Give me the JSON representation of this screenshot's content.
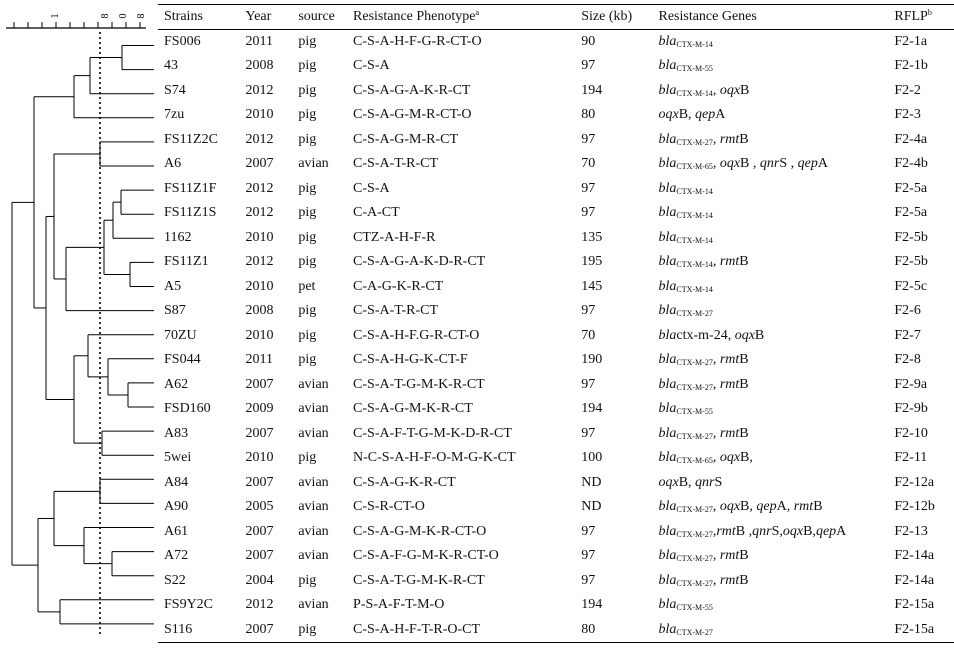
{
  "headers": {
    "strain": "Strains",
    "year": "Year",
    "source": "source",
    "phenotype": "Resistance Phenotype",
    "phenotype_sup": "a",
    "size": "Size (kb)",
    "genes": "Resistance Genes",
    "rflp": "RFLP",
    "rflp_sup": "b"
  },
  "scale": {
    "ticks": [
      "1",
      "8",
      "0",
      "8"
    ]
  },
  "rows": [
    {
      "strain": "FS006",
      "year": "2011",
      "source": "pig",
      "phenotype": "C-S-A-H-F-G-R-CT-O",
      "size": "90",
      "genes": [
        {
          "t": "bla",
          "i": true
        },
        {
          "t": "CTX-M-14",
          "s": true
        }
      ],
      "rflp": "F2-1a"
    },
    {
      "strain": "43",
      "year": "2008",
      "source": "pig",
      "phenotype": "C-S-A",
      "size": "97",
      "genes": [
        {
          "t": "bla",
          "i": true
        },
        {
          "t": "CTX-M-55",
          "s": true
        }
      ],
      "rflp": "F2-1b"
    },
    {
      "strain": "S74",
      "year": "2012",
      "source": "pig",
      "phenotype": "C-S-A-G-A-K-R-CT",
      "size": "194",
      "genes": [
        {
          "t": "bla",
          "i": true
        },
        {
          "t": "CTX-M-14",
          "s": true
        },
        {
          "t": ", "
        },
        {
          "t": "oqx",
          "i": true
        },
        {
          "t": "B"
        }
      ],
      "rflp": "F2-2"
    },
    {
      "strain": "7zu",
      "year": "2010",
      "source": "pig",
      "phenotype": "C-S-A-G-M-R-CT-O",
      "size": "80",
      "genes": [
        {
          "t": "oqx",
          "i": true
        },
        {
          "t": "B, "
        },
        {
          "t": "qep",
          "i": true
        },
        {
          "t": "A"
        }
      ],
      "rflp": "F2-3"
    },
    {
      "strain": "FS11Z2C",
      "year": "2012",
      "source": "pig",
      "phenotype": "C-S-A-G-M-R-CT",
      "size": "97",
      "genes": [
        {
          "t": "bla",
          "i": true
        },
        {
          "t": "CTX-M-27",
          "s": true
        },
        {
          "t": ", "
        },
        {
          "t": "rmt",
          "i": true
        },
        {
          "t": "B"
        }
      ],
      "rflp": "F2-4a"
    },
    {
      "strain": "A6",
      "year": "2007",
      "source": "avian",
      "phenotype": "C-S-A-T-R-CT",
      "size": "70",
      "genes": [
        {
          "t": "bla",
          "i": true
        },
        {
          "t": "CTX-M-65",
          "s": true
        },
        {
          "t": ", "
        },
        {
          "t": "oqx",
          "i": true
        },
        {
          "t": "B , "
        },
        {
          "t": "qnr",
          "i": true
        },
        {
          "t": "S , "
        },
        {
          "t": "qep",
          "i": true
        },
        {
          "t": "A"
        }
      ],
      "rflp": "F2-4b"
    },
    {
      "strain": "FS11Z1F",
      "year": "2012",
      "source": "pig",
      "phenotype": "C-S-A",
      "size": "97",
      "genes": [
        {
          "t": "bla",
          "i": true
        },
        {
          "t": "CTX-M-14",
          "s": true
        }
      ],
      "rflp": "F2-5a"
    },
    {
      "strain": "FS11Z1S",
      "year": "2012",
      "source": "pig",
      "phenotype": "C-A-CT",
      "size": "97",
      "genes": [
        {
          "t": "bla",
          "i": true
        },
        {
          "t": "CTX-M-14",
          "s": true
        }
      ],
      "rflp": "F2-5a"
    },
    {
      "strain": "1162",
      "year": "2010",
      "source": "pig",
      "phenotype": "CTZ-A-H-F-R",
      "size": "135",
      "genes": [
        {
          "t": "bla",
          "i": true
        },
        {
          "t": "CTX-M-14",
          "s": true
        }
      ],
      "rflp": "F2-5b"
    },
    {
      "strain": "FS11Z1",
      "year": "2012",
      "source": "pig",
      "phenotype": "C-S-A-G-A-K-D-R-CT",
      "size": "195",
      "genes": [
        {
          "t": "bla",
          "i": true
        },
        {
          "t": "CTX-M-14",
          "s": true
        },
        {
          "t": ", "
        },
        {
          "t": "rmt",
          "i": true
        },
        {
          "t": "B"
        }
      ],
      "rflp": "F2-5b"
    },
    {
      "strain": "A5",
      "year": "2010",
      "source": "pet",
      "phenotype": "C-A-G-K-R-CT",
      "size": "145",
      "genes": [
        {
          "t": "bla",
          "i": true
        },
        {
          "t": "CTX-M-14",
          "s": true
        }
      ],
      "rflp": "F2-5c"
    },
    {
      "strain": "S87",
      "year": "2008",
      "source": "pig",
      "phenotype": "C-S-A-T-R-CT",
      "size": "97",
      "genes": [
        {
          "t": "bla",
          "i": true
        },
        {
          "t": "CTX-M-27",
          "s": true
        }
      ],
      "rflp": "F2-6"
    },
    {
      "strain": "70ZU",
      "year": "2010",
      "source": "pig",
      "phenotype": "C-S-A-H-F.G-R-CT-O",
      "size": "70",
      "genes": [
        {
          "t": "bla",
          "i": true
        },
        {
          "t": "ctx-m-24, "
        },
        {
          "t": "oqx",
          "i": true
        },
        {
          "t": "B"
        }
      ],
      "rflp": "F2-7"
    },
    {
      "strain": "FS044",
      "year": "2011",
      "source": "pig",
      "phenotype": "C-S-A-H-G-K-CT-F",
      "size": "190",
      "genes": [
        {
          "t": "bla",
          "i": true
        },
        {
          "t": "CTX-M-27",
          "s": true
        },
        {
          "t": ", "
        },
        {
          "t": "rmt",
          "i": true
        },
        {
          "t": "B"
        }
      ],
      "rflp": "F2-8"
    },
    {
      "strain": "A62",
      "year": "2007",
      "source": "avian",
      "phenotype": "C-S-A-T-G-M-K-R-CT",
      "size": "97",
      "genes": [
        {
          "t": "bla",
          "i": true
        },
        {
          "t": "CTX-M-27",
          "s": true
        },
        {
          "t": ", "
        },
        {
          "t": "rmt",
          "i": true
        },
        {
          "t": "B"
        }
      ],
      "rflp": "F2-9a"
    },
    {
      "strain": "FSD160",
      "year": "2009",
      "source": "avian",
      "phenotype": "C-S-A-G-M-K-R-CT",
      "size": "194",
      "genes": [
        {
          "t": "bla",
          "i": true
        },
        {
          "t": "CTX-M-55",
          "s": true
        }
      ],
      "rflp": "F2-9b"
    },
    {
      "strain": "A83",
      "year": "2007",
      "source": "avian",
      "phenotype": "C-S-A-F-T-G-M-K-D-R-CT",
      "size": "97",
      "genes": [
        {
          "t": "bla",
          "i": true
        },
        {
          "t": "CTX-M-27",
          "s": true
        },
        {
          "t": ", "
        },
        {
          "t": "rmt",
          "i": true
        },
        {
          "t": "B"
        }
      ],
      "rflp": "F2-10"
    },
    {
      "strain": "5wei",
      "year": "2010",
      "source": "pig",
      "phenotype": "N-C-S-A-H-F-O-M-G-K-CT",
      "size": "100",
      "genes": [
        {
          "t": "bla",
          "i": true
        },
        {
          "t": "CTX-M-65",
          "s": true
        },
        {
          "t": ", "
        },
        {
          "t": "oqx",
          "i": true
        },
        {
          "t": "B,"
        }
      ],
      "rflp": "F2-11"
    },
    {
      "strain": "A84",
      "year": "2007",
      "source": "avian",
      "phenotype": "C-S-A-G-K-R-CT",
      "size": "ND",
      "genes": [
        {
          "t": "oqx",
          "i": true
        },
        {
          "t": "B, "
        },
        {
          "t": "qnr",
          "i": true
        },
        {
          "t": "S"
        }
      ],
      "rflp": "F2-12a"
    },
    {
      "strain": "A90",
      "year": "2005",
      "source": "avian",
      "phenotype": "C-S-R-CT-O",
      "size": "ND",
      "genes": [
        {
          "t": "bla",
          "i": true
        },
        {
          "t": "CTX-M-27",
          "s": true
        },
        {
          "t": ", "
        },
        {
          "t": "oqx",
          "i": true
        },
        {
          "t": "B, "
        },
        {
          "t": "qep",
          "i": true
        },
        {
          "t": "A, "
        },
        {
          "t": "rmt",
          "i": true
        },
        {
          "t": "B"
        }
      ],
      "rflp": "F2-12b"
    },
    {
      "strain": "A61",
      "year": "2007",
      "source": "avian",
      "phenotype": "C-S-A-G-M-K-R-CT-O",
      "size": "97",
      "genes": [
        {
          "t": "bla",
          "i": true
        },
        {
          "t": "CTX-M-27",
          "s": true
        },
        {
          "t": ","
        },
        {
          "t": "rmt",
          "i": true
        },
        {
          "t": "B ,"
        },
        {
          "t": "qnr",
          "i": true
        },
        {
          "t": "S,"
        },
        {
          "t": "oqx",
          "i": true
        },
        {
          "t": "B,"
        },
        {
          "t": "qep",
          "i": true
        },
        {
          "t": "A"
        }
      ],
      "rflp": "F2-13"
    },
    {
      "strain": "A72",
      "year": "2007",
      "source": "avian",
      "phenotype": "C-S-A-F-G-M-K-R-CT-O",
      "size": "97",
      "genes": [
        {
          "t": "bla",
          "i": true
        },
        {
          "t": "CTX-M-27",
          "s": true
        },
        {
          "t": ", "
        },
        {
          "t": "rmt",
          "i": true
        },
        {
          "t": "B"
        }
      ],
      "rflp": "F2-14a"
    },
    {
      "strain": "S22",
      "year": "2004",
      "source": "pig",
      "phenotype": "C-S-A-T-G-M-K-R-CT",
      "size": "97",
      "genes": [
        {
          "t": "bla",
          "i": true
        },
        {
          "t": "CTX-M-27",
          "s": true
        },
        {
          "t": ", "
        },
        {
          "t": "rmt",
          "i": true
        },
        {
          "t": "B"
        }
      ],
      "rflp": "F2-14a"
    },
    {
      "strain": "FS9Y2C",
      "year": "2012",
      "source": "avian",
      "phenotype": "P-S-A-F-T-M-O",
      "size": "194",
      "genes": [
        {
          "t": "bla",
          "i": true
        },
        {
          "t": "CTX-M-55",
          "s": true
        }
      ],
      "rflp": "F2-15a"
    },
    {
      "strain": "S116",
      "year": "2007",
      "source": "pig",
      "phenotype": "C-S-A-H-F-T-R-O-CT",
      "size": "80",
      "genes": [
        {
          "t": "bla",
          "i": true
        },
        {
          "t": "CTX-M-27",
          "s": true
        }
      ],
      "rflp": "F2-15a"
    }
  ]
}
